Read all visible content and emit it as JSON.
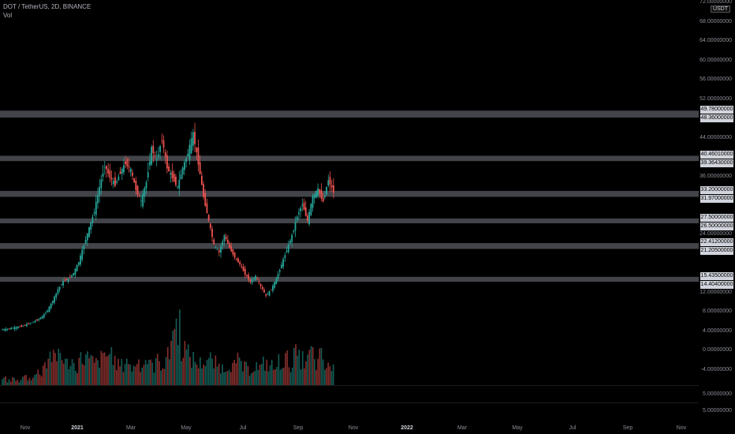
{
  "header": {
    "title": "DOT / TetherUS, 2D, BINANCE",
    "indicator": "Vol"
  },
  "price_axis": {
    "currency_badge": "USDT",
    "ticks": [
      "72.00000000",
      "68.00000000",
      "64.00000000",
      "60.00000000",
      "56.00000000",
      "52.00000000",
      "44.00000000",
      "36.00000000",
      "24.00000000",
      "12.00000000",
      "8.00000000",
      "4.00000000",
      "0.00000000",
      "-4.00000000"
    ],
    "volume_pane_ticks": [
      "5.00000000",
      "5.00000000"
    ]
  },
  "levels": [
    {
      "top_label": "49.78000000",
      "bottom_label": "48.36000000",
      "top": 49.78,
      "bottom": 48.36
    },
    {
      "top_label": "40.46010000",
      "bottom_label": "39.36430000",
      "top": 40.4601,
      "bottom": 39.3643
    },
    {
      "top_label": "33.20000000",
      "bottom_label": "31.97000000",
      "top": 33.2,
      "bottom": 31.97
    },
    {
      "top_label": "27.50000000",
      "bottom_label": "26.50000000",
      "top": 27.5,
      "bottom": 26.5
    },
    {
      "top_label": "22.41200000",
      "bottom_label": "21.20500000",
      "top": 22.412,
      "bottom": 21.205
    },
    {
      "top_label": "15.43500000",
      "bottom_label": "14.40400000",
      "top": 15.435,
      "bottom": 14.404
    }
  ],
  "time_axis": {
    "labels": [
      {
        "text": "Nov",
        "bold": false
      },
      {
        "text": "2021",
        "bold": true
      },
      {
        "text": "Mar",
        "bold": false
      },
      {
        "text": "May",
        "bold": false
      },
      {
        "text": "Jul",
        "bold": false
      },
      {
        "text": "Sep",
        "bold": false
      },
      {
        "text": "Nov",
        "bold": false
      },
      {
        "text": "2022",
        "bold": true
      },
      {
        "text": "Mar",
        "bold": false
      },
      {
        "text": "May",
        "bold": false
      },
      {
        "text": "Jul",
        "bold": false
      },
      {
        "text": "Sep",
        "bold": false
      },
      {
        "text": "Nov",
        "bold": false
      }
    ]
  },
  "chart_data": {
    "type": "candlestick",
    "ylim": [
      -4,
      72
    ],
    "up_color": "#26a69a",
    "down_color": "#ef5350",
    "level_color": "#787b86",
    "price_path": [
      4.5,
      4.6,
      4.8,
      5.0,
      5.2,
      5.6,
      6.0,
      6.5,
      7.2,
      8.5,
      10.5,
      12.8,
      14.5,
      15.0,
      16.2,
      18.5,
      22.0,
      25.5,
      29.0,
      34.0,
      38.5,
      36.0,
      34.5,
      37.0,
      39.0,
      37.5,
      33.5,
      31.0,
      35.0,
      42.0,
      39.5,
      44.0,
      38.0,
      36.0,
      34.0,
      38.0,
      41.0,
      45.0,
      39.0,
      32.0,
      27.0,
      22.0,
      20.5,
      24.0,
      21.5,
      19.5,
      18.0,
      16.0,
      14.5,
      15.5,
      13.5,
      11.5,
      12.8,
      15.0,
      18.0,
      21.0,
      24.0,
      28.0,
      30.5,
      27.0,
      32.0,
      33.5,
      31.0,
      35.5,
      33.0
    ],
    "volume_path": [
      3,
      2,
      3,
      2,
      4,
      3,
      5,
      6,
      10,
      14,
      12,
      16,
      10,
      11,
      9,
      12,
      13,
      11,
      10,
      12,
      14,
      15,
      10,
      9,
      12,
      8,
      11,
      10,
      12,
      9,
      11,
      10,
      13,
      26,
      28,
      18,
      14,
      12,
      10,
      11,
      12,
      10,
      9,
      8,
      10,
      9,
      11,
      8,
      7,
      9,
      8,
      10,
      9,
      8,
      11,
      12,
      10,
      14,
      12,
      11,
      15,
      10,
      13,
      8,
      9
    ]
  }
}
